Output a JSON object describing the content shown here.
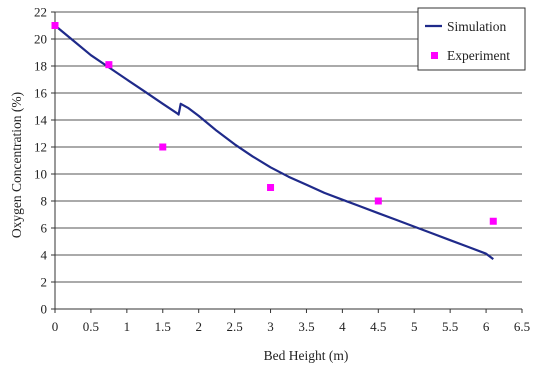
{
  "chart_data": {
    "type": "line",
    "xlabel": "Bed Height (m)",
    "ylabel": "Oxygen Concentration (%)",
    "xlim": [
      0,
      6.5
    ],
    "ylim": [
      0,
      22
    ],
    "x_ticks": [
      "0",
      "0.5",
      "1",
      "1.5",
      "2",
      "2.5",
      "3",
      "3.5",
      "4",
      "4.5",
      "5",
      "5.5",
      "6",
      "6.5"
    ],
    "y_ticks": [
      "0",
      "2",
      "4",
      "6",
      "8",
      "10",
      "12",
      "14",
      "16",
      "18",
      "20",
      "22"
    ],
    "grid": "horizontal",
    "legend_position": "top-right",
    "series": [
      {
        "name": "Simulation",
        "kind": "line",
        "color": "#1f2a8a",
        "x": [
          0,
          0.25,
          0.5,
          0.75,
          1.0,
          1.25,
          1.5,
          1.7,
          1.72,
          1.75,
          1.85,
          2.0,
          2.25,
          2.5,
          2.75,
          3.0,
          3.25,
          3.5,
          3.75,
          4.0,
          4.25,
          4.5,
          4.75,
          5.0,
          5.25,
          5.5,
          5.75,
          6.0,
          6.1
        ],
        "y": [
          21.0,
          19.9,
          18.8,
          17.9,
          17.0,
          16.1,
          15.2,
          14.5,
          14.4,
          15.2,
          14.9,
          14.3,
          13.2,
          12.2,
          11.3,
          10.5,
          9.8,
          9.2,
          8.6,
          8.1,
          7.6,
          7.1,
          6.6,
          6.1,
          5.6,
          5.1,
          4.6,
          4.1,
          3.7
        ]
      },
      {
        "name": "Experiment",
        "kind": "scatter",
        "color": "#ff00ff",
        "x": [
          0,
          0.75,
          1.5,
          3.0,
          4.5,
          6.1
        ],
        "y": [
          21.0,
          18.1,
          12.0,
          9.0,
          8.0,
          6.5
        ]
      }
    ]
  }
}
